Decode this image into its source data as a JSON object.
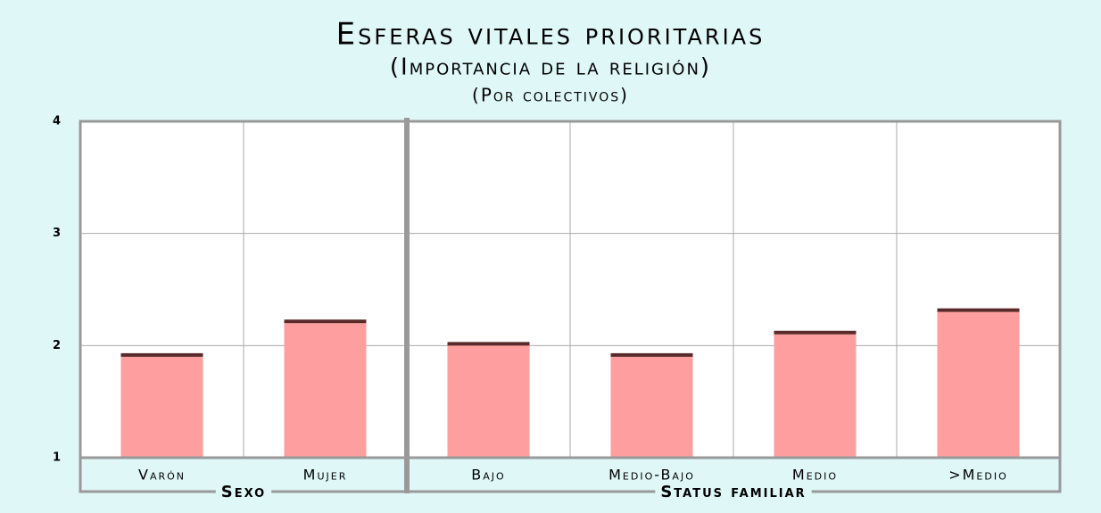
{
  "chart_data": {
    "type": "bar",
    "title": "Esferas vitales prioritarias",
    "subtitle": "(Importancia de la religión)",
    "subtitle2": "(Por colectivos)",
    "groups": [
      {
        "name": "Sexo",
        "categories": [
          "Varón",
          "Mujer"
        ],
        "values": [
          1.9,
          2.2
        ]
      },
      {
        "name": "Status familiar",
        "categories": [
          "Bajo",
          "Medio-Bajo",
          "Medio",
          ">Medio"
        ],
        "values": [
          2.0,
          1.9,
          2.1,
          2.3
        ]
      }
    ],
    "color": "#ff9e9e",
    "ylim": [
      1,
      4
    ],
    "yticks": [
      1,
      2,
      3,
      4
    ],
    "grid": true
  }
}
